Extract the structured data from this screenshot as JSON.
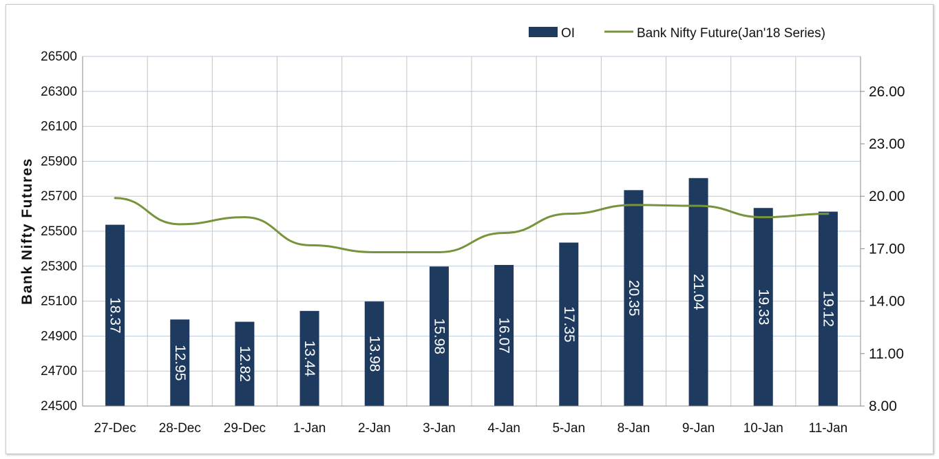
{
  "chart_data": {
    "type": "bar",
    "categories": [
      "27-Dec",
      "28-Dec",
      "29-Dec",
      "1-Jan",
      "2-Jan",
      "3-Jan",
      "4-Jan",
      "5-Jan",
      "8-Jan",
      "9-Jan",
      "10-Jan",
      "11-Jan"
    ],
    "series": [
      {
        "name": "OI",
        "type": "bar",
        "axis": "right",
        "color": "#1f3a5f",
        "values": [
          18.37,
          12.95,
          12.82,
          13.44,
          13.98,
          15.98,
          16.07,
          17.35,
          20.35,
          21.04,
          19.33,
          19.12
        ]
      },
      {
        "name": "Bank Nifty Future(Jan'18 Series)",
        "type": "line",
        "axis": "left",
        "color": "#77933c",
        "values": [
          25690,
          25540,
          25580,
          25420,
          25380,
          25380,
          25490,
          25600,
          25650,
          25645,
          25580,
          25600
        ]
      }
    ],
    "ylabel": "Bank Nifty Futures",
    "ylim": [
      24500,
      26500
    ],
    "yticks": [
      24500,
      24700,
      24900,
      25100,
      25300,
      25500,
      25700,
      25900,
      26100,
      26300,
      26500
    ],
    "y2lim": [
      8,
      28
    ],
    "y2ticks": [
      "8.00",
      "11.00",
      "14.00",
      "17.00",
      "20.00",
      "23.00",
      "26.00"
    ],
    "grid": true,
    "legend": "top-right"
  }
}
